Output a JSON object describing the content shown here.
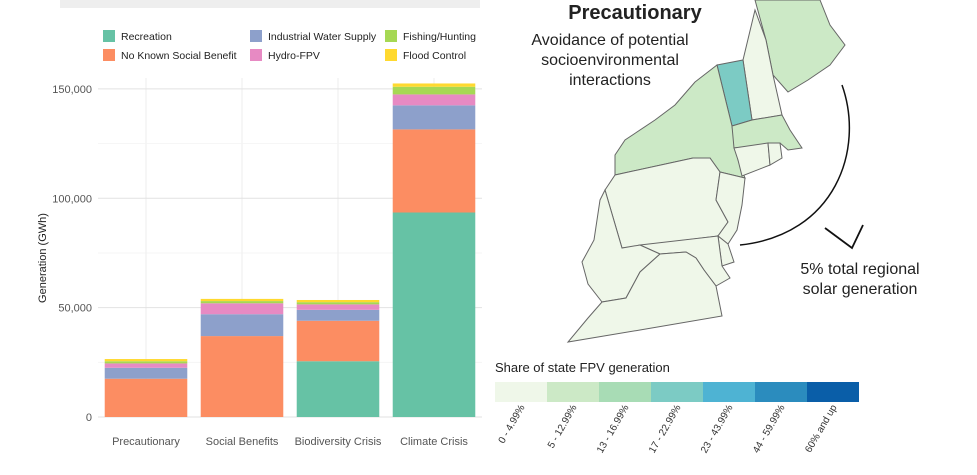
{
  "chart_data": {
    "type": "bar",
    "stacked": true,
    "title": "",
    "xlabel": "",
    "ylabel": "Generation (GWh)",
    "ylim": [
      0,
      155000
    ],
    "yticks": [
      0,
      50000,
      100000,
      150000
    ],
    "ytick_labels": [
      "0",
      "50,000",
      "100,000",
      "150,000"
    ],
    "grid": true,
    "legend_position": "top",
    "categories": [
      "Precautionary",
      "Social Benefits",
      "Biodiversity Crisis",
      "Climate Crisis"
    ],
    "series": [
      {
        "name": "Recreation",
        "color": "#66c2a5",
        "values": [
          0,
          0,
          25500,
          93500
        ]
      },
      {
        "name": "No Known Social Benefit",
        "color": "#fc8d62",
        "values": [
          17500,
          37000,
          18500,
          38000
        ]
      },
      {
        "name": "Industrial Water Supply",
        "color": "#8da0cb",
        "values": [
          5000,
          10000,
          5000,
          11000
        ]
      },
      {
        "name": "Hydro-FPV",
        "color": "#e78ac3",
        "values": [
          2000,
          5000,
          2500,
          5000
        ]
      },
      {
        "name": "Fishing/Hunting",
        "color": "#a6d854",
        "values": [
          1000,
          1000,
          1000,
          3500
        ]
      },
      {
        "name": "Flood Control",
        "color": "#ffd92f",
        "values": [
          1000,
          1000,
          1000,
          1500
        ]
      }
    ]
  },
  "map": {
    "title": "Precautionary",
    "subtitle_lines": [
      "Avoidance of potential",
      "socioenvironmental",
      "interactions"
    ],
    "note_lines": [
      "5% total regional",
      "solar generation"
    ],
    "scale_title": "Share of state FPV generation",
    "scale_bins": [
      {
        "label": "0 - 4.99%",
        "color": "#eff7e9"
      },
      {
        "label": "5 - 12.99%",
        "color": "#cce9c6"
      },
      {
        "label": "13 - 16.99%",
        "color": "#a8dcb5"
      },
      {
        "label": "17 - 22.99%",
        "color": "#7ccbc4"
      },
      {
        "label": "23 - 43.99%",
        "color": "#4eb3d3"
      },
      {
        "label": "44 - 59.99%",
        "color": "#2b8cbe"
      },
      {
        "label": "60% and up",
        "color": "#0a5ea8"
      }
    ]
  }
}
